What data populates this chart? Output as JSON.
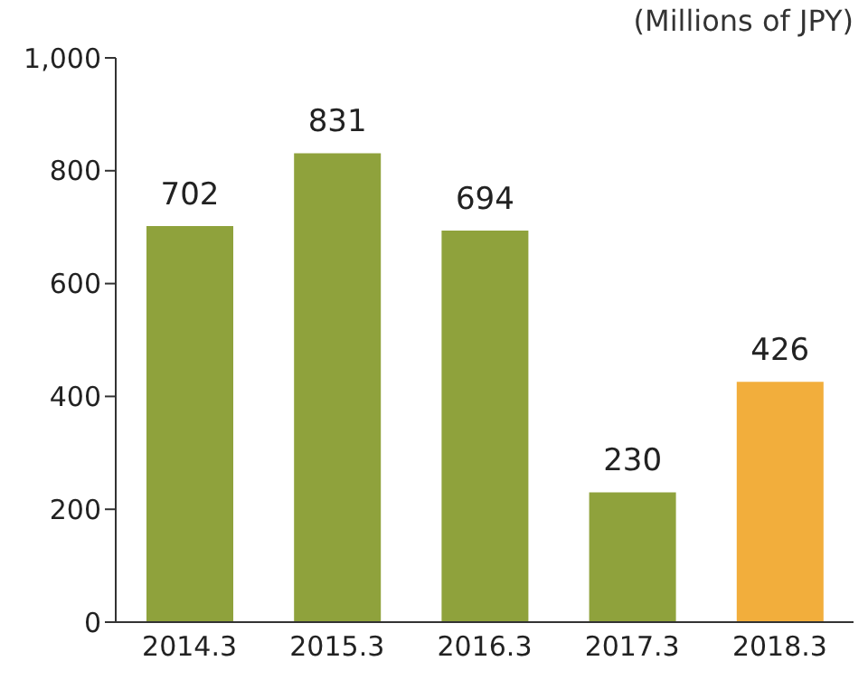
{
  "chart_data": {
    "type": "bar",
    "ylabel": "(Millions of JPY)",
    "categories": [
      "2014.3",
      "2015.3",
      "2016.3",
      "2017.3",
      "2018.3"
    ],
    "values": [
      702,
      831,
      694,
      230,
      426
    ],
    "colors": [
      "#8fa23c",
      "#8fa23c",
      "#8fa23c",
      "#8fa23c",
      "#f2ae3c"
    ],
    "ylim": [
      0,
      1000
    ],
    "yticks": [
      0,
      200,
      400,
      600,
      800,
      {
        "value": 1000,
        "label": "1,000"
      }
    ],
    "grid": false,
    "data_labels": true
  }
}
